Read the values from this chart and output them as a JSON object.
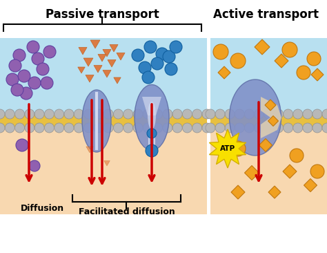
{
  "bg_color": "#ffffff",
  "cell_top_color": "#b8e0f0",
  "cell_bottom_color": "#f8d8b0",
  "membrane_yellow": "#e8c040",
  "membrane_gray": "#b8b8b8",
  "protein_color": "#8090c8",
  "purple_mol": "#9060b0",
  "blue_mol": "#3080c0",
  "orange_tri": "#e07030",
  "red_arrow": "#cc0000",
  "orange_mol": "#f0a020",
  "atp_yellow": "#f8e000",
  "title_passive": "Passive transport",
  "title_active": "Active transport",
  "label_diffusion": "Diffusion",
  "label_facilitated": "Facilitated diffusion",
  "figsize": [
    4.74,
    3.66
  ],
  "dpi": 100
}
